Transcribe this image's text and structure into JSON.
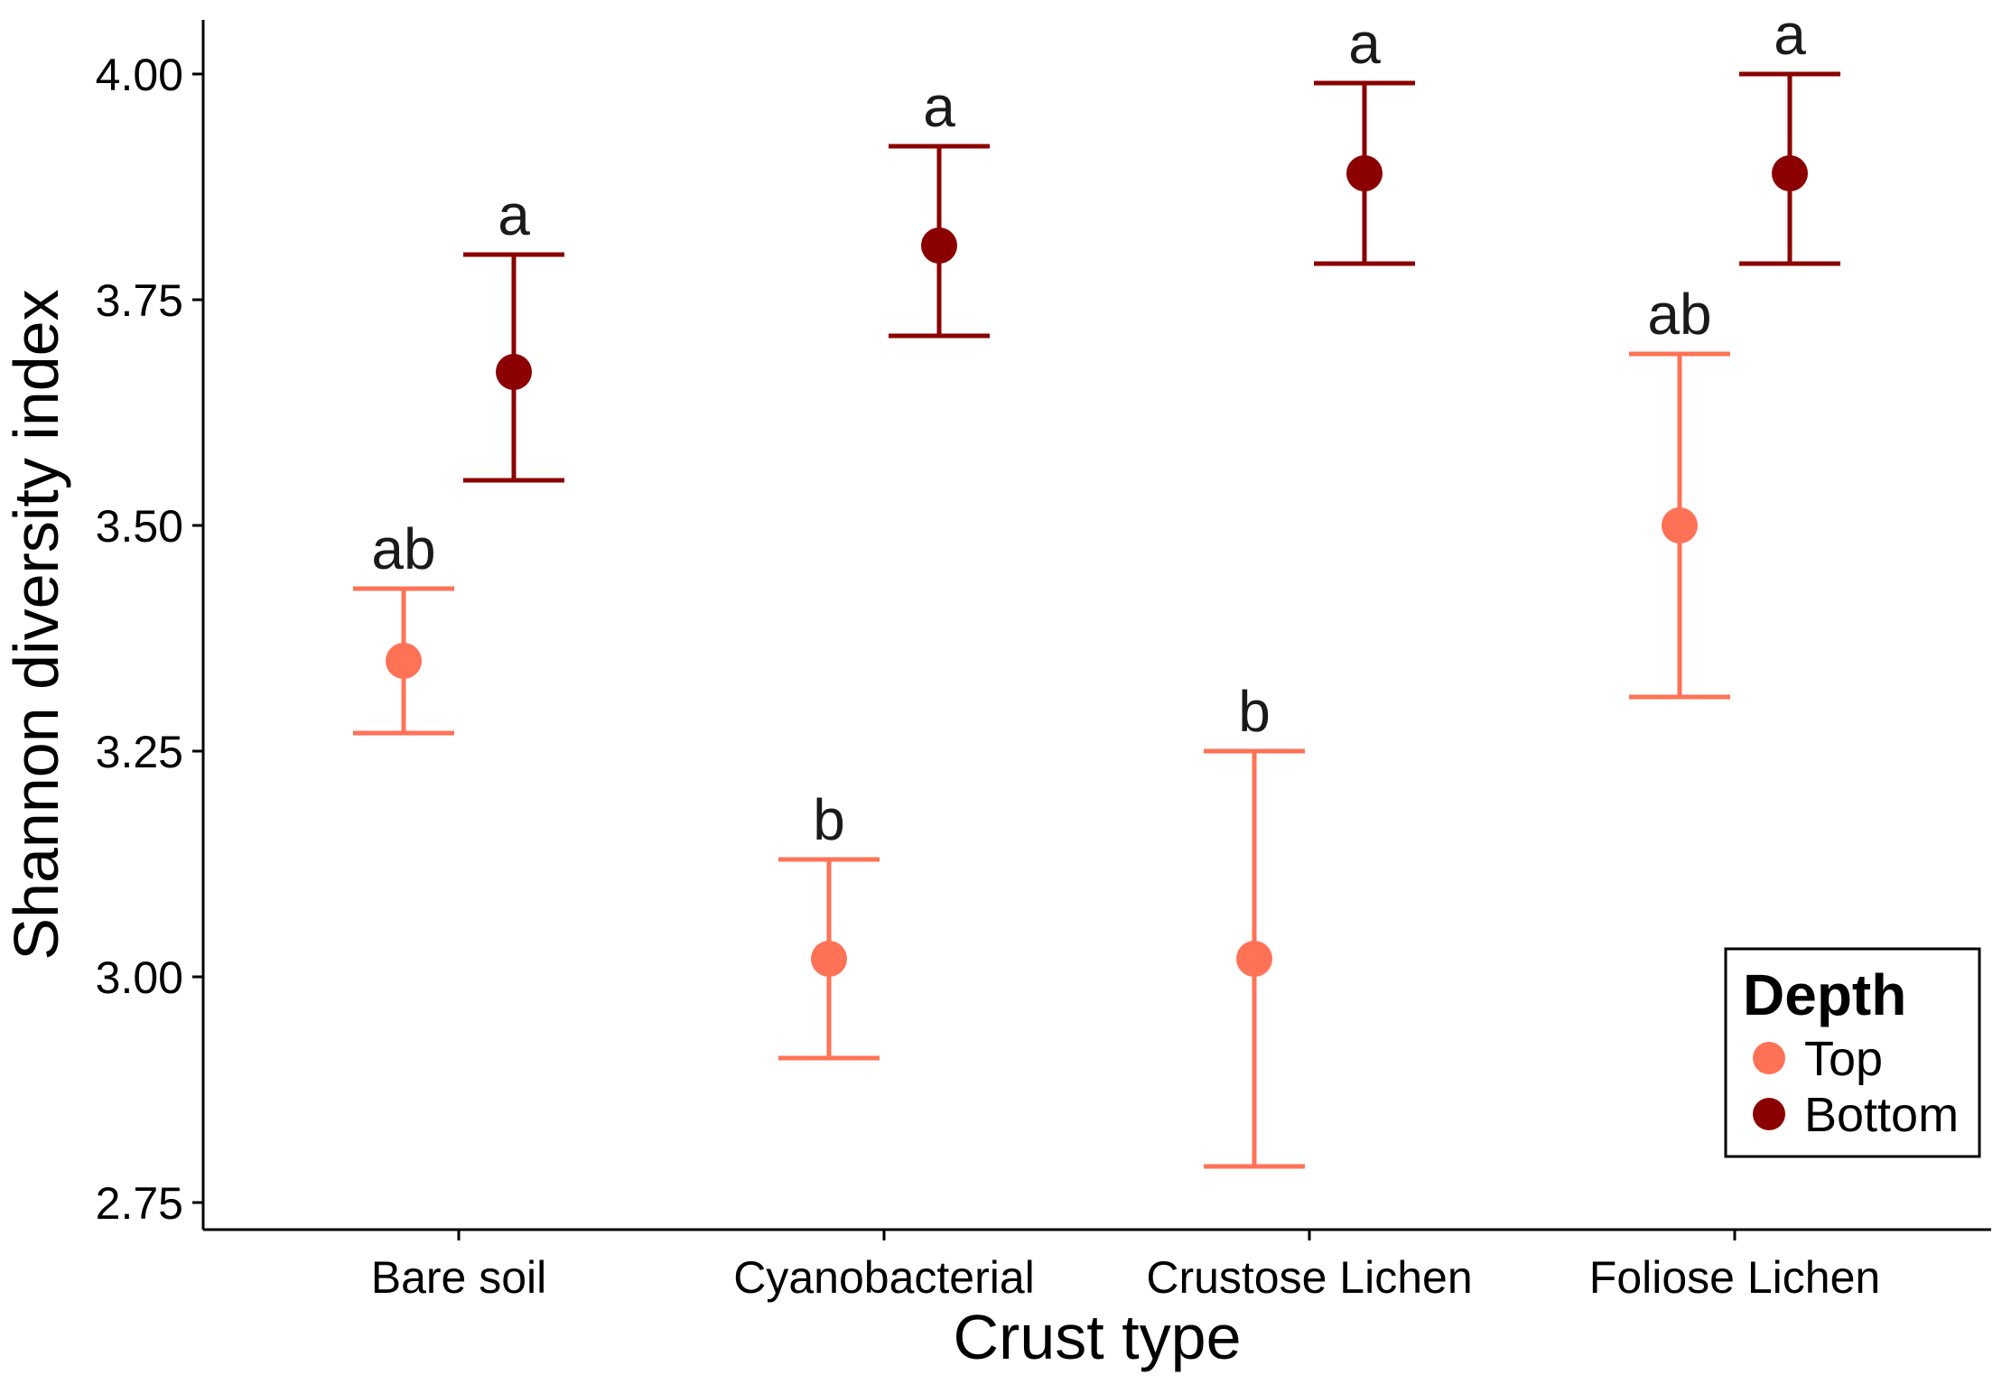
{
  "chart_data": {
    "type": "scatter",
    "xlabel": "Crust type",
    "ylabel": "Shannon diversity index",
    "categories": [
      "Bare soil",
      "Cyanobacterial",
      "Crustose Lichen",
      "Foliose Lichen"
    ],
    "ylim": [
      2.72,
      4.06
    ],
    "yticks": [
      "2.75",
      "3.00",
      "3.25",
      "3.50",
      "3.75",
      "4.00"
    ],
    "grid": false,
    "legend": {
      "title": "Depth",
      "placement": "bottom-right",
      "entries": [
        "Top",
        "Bottom"
      ]
    },
    "series": [
      {
        "name": "Top",
        "color": "#FF7256",
        "values": [
          3.35,
          3.02,
          3.02,
          3.5
        ],
        "lower": [
          3.27,
          2.91,
          2.79,
          3.31
        ],
        "upper": [
          3.43,
          3.13,
          3.25,
          3.69
        ],
        "sig_labels": [
          "ab",
          "b",
          "b",
          "ab"
        ]
      },
      {
        "name": "Bottom",
        "color": "#8B0000",
        "values": [
          3.67,
          3.81,
          3.89,
          3.89
        ],
        "lower": [
          3.55,
          3.71,
          3.79,
          3.79
        ],
        "upper": [
          3.8,
          3.92,
          3.99,
          4.0
        ],
        "sig_labels": [
          "a",
          "a",
          "a",
          "a"
        ]
      }
    ]
  }
}
